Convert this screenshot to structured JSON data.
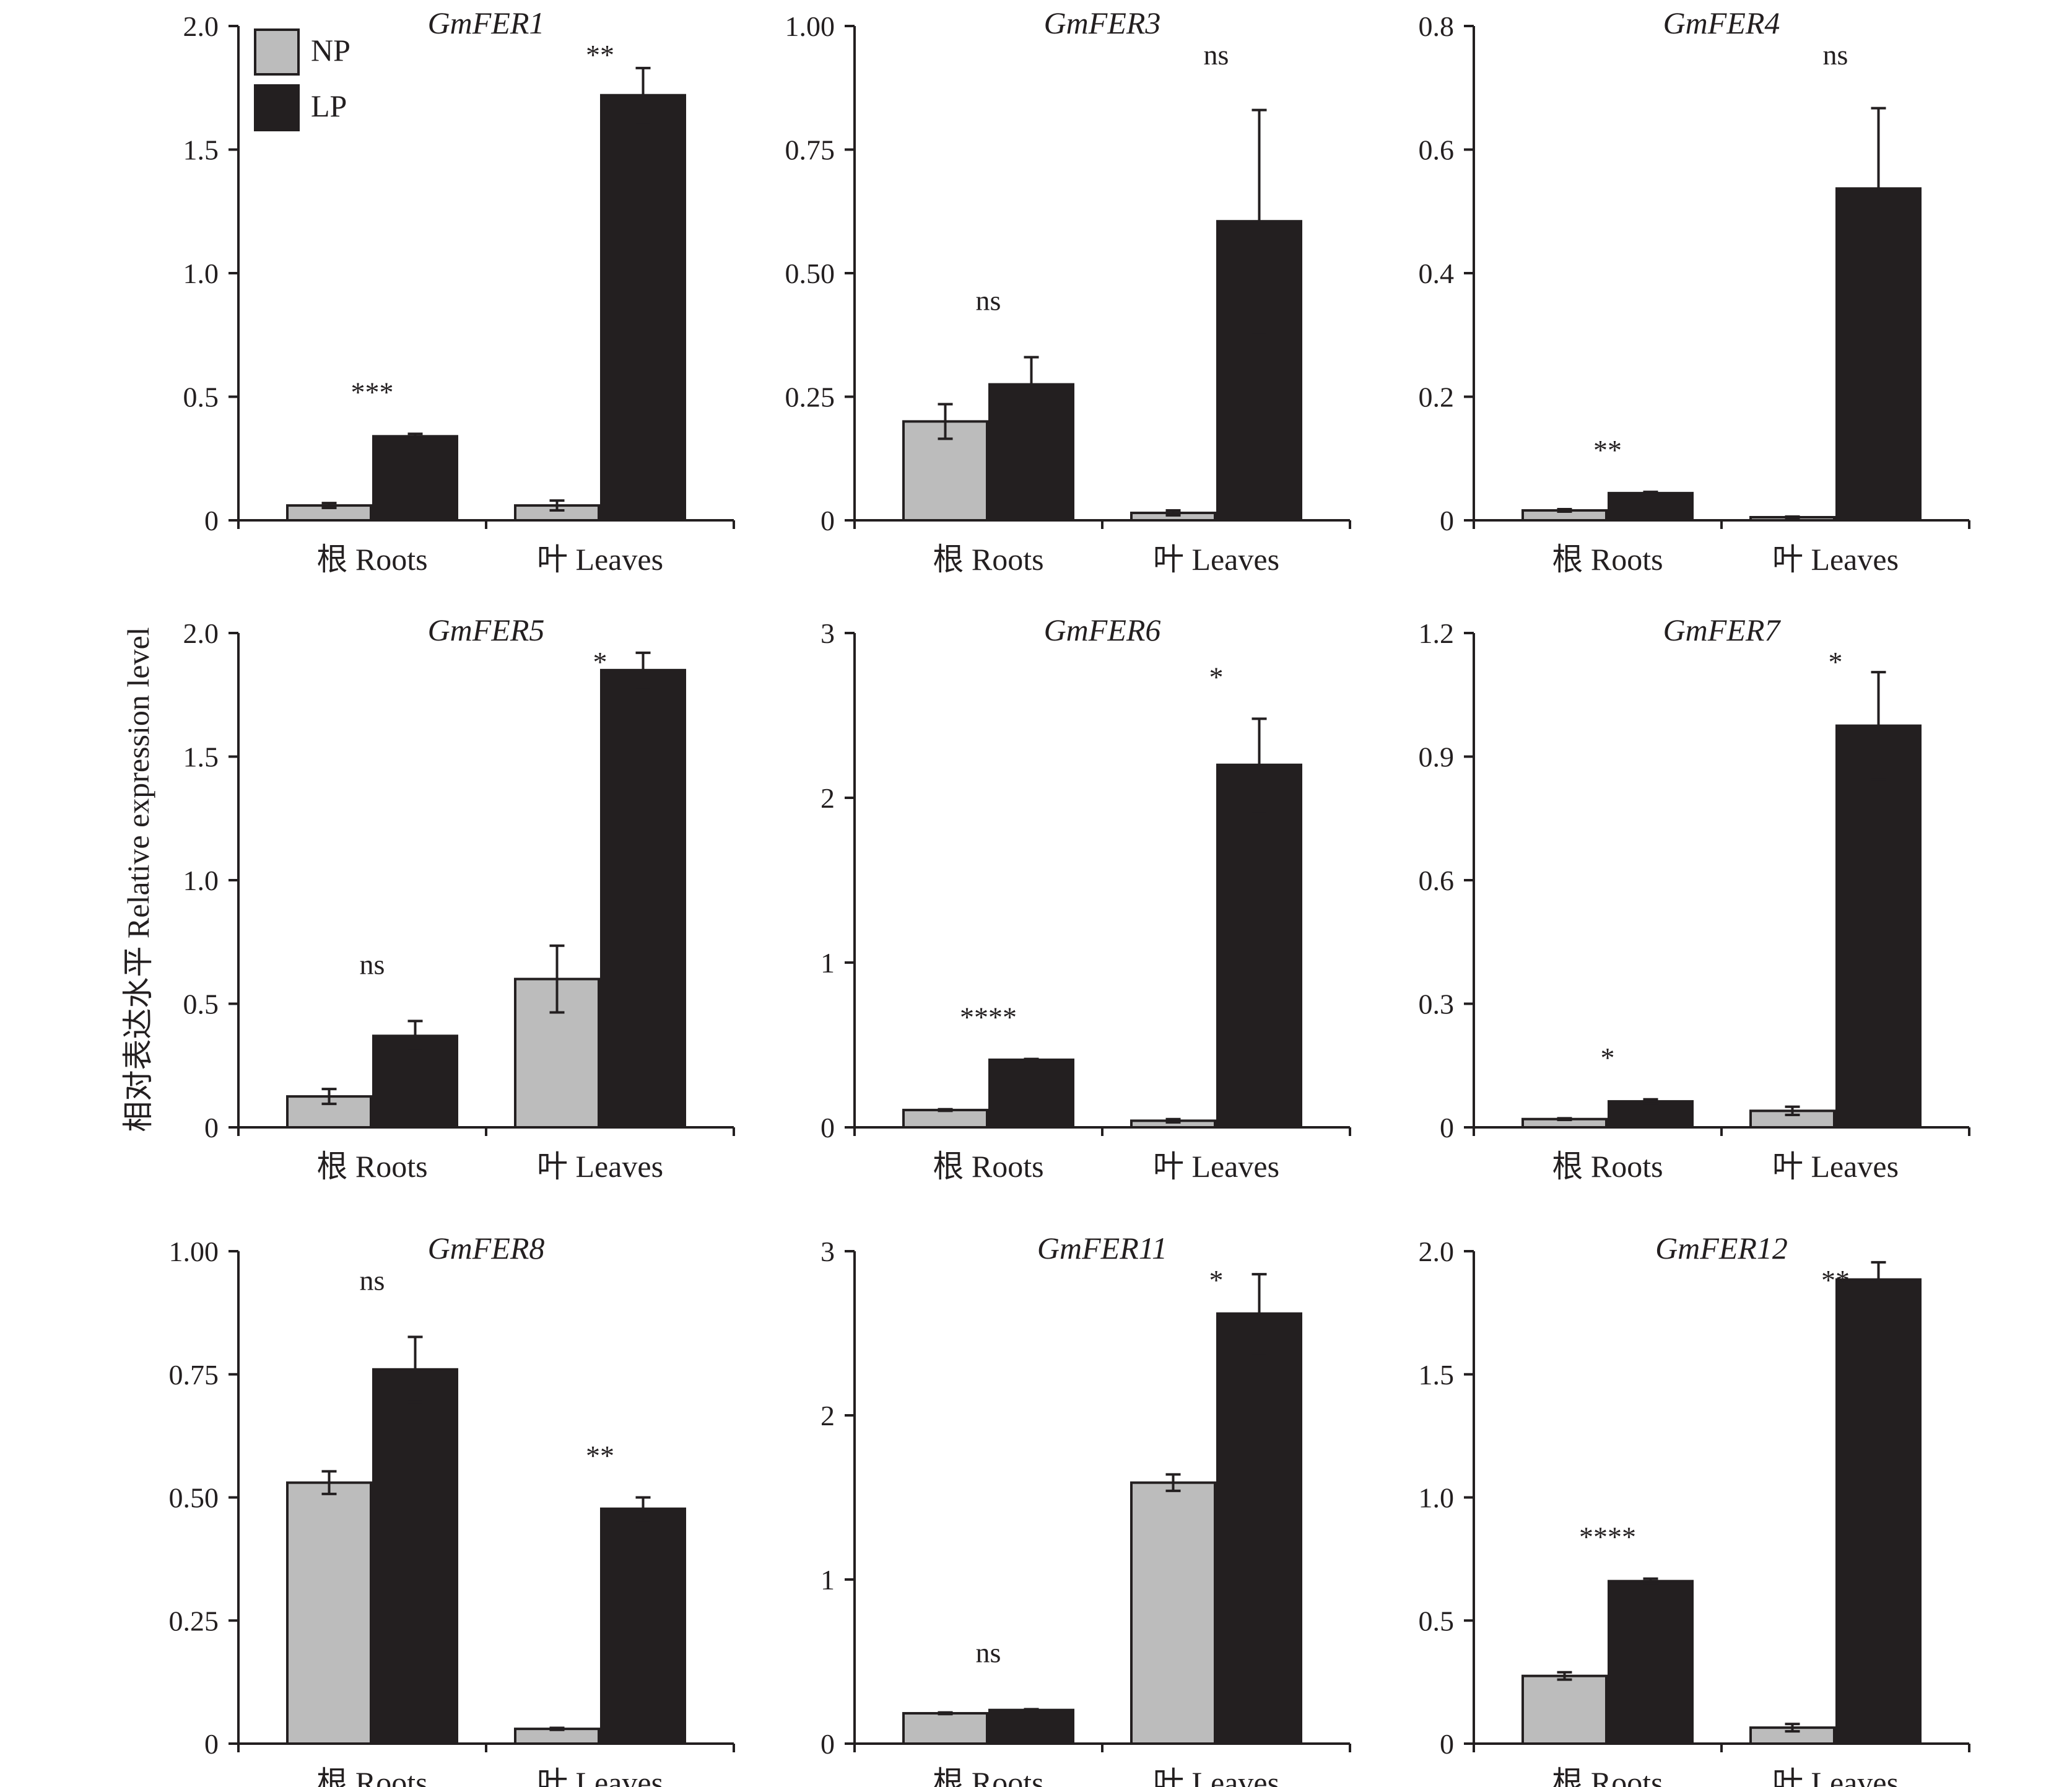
{
  "colors": {
    "np": "#bcbcbc",
    "lp": "#231f20",
    "axis": "#231f20"
  },
  "figure": {
    "ylabel": "相对表达水平 Relative expression level",
    "legend": [
      "NP",
      "LP"
    ]
  },
  "chart_data": [
    {
      "type": "bar",
      "title": "GmFER1",
      "categories": [
        "根 Roots",
        "叶 Leaves"
      ],
      "series": [
        {
          "name": "NP",
          "values": [
            0.06,
            0.06
          ],
          "errors": [
            0.01,
            0.02
          ]
        },
        {
          "name": "LP",
          "values": [
            0.34,
            1.72
          ],
          "errors": [
            0.01,
            0.11
          ]
        }
      ],
      "significance": [
        "***",
        "**"
      ],
      "ylim": [
        0,
        2.0
      ],
      "yticks": [
        "0",
        "0.5",
        "1.0",
        "1.5",
        "2.0"
      ],
      "legend": "top-left"
    },
    {
      "type": "bar",
      "title": "GmFER3",
      "categories": [
        "根 Roots",
        "叶 Leaves"
      ],
      "series": [
        {
          "name": "NP",
          "values": [
            0.2,
            0.015
          ],
          "errors": [
            0.035,
            0.005
          ]
        },
        {
          "name": "LP",
          "values": [
            0.275,
            0.605
          ],
          "errors": [
            0.055,
            0.225
          ]
        }
      ],
      "significance": [
        "ns",
        "ns"
      ],
      "ylim": [
        0,
        1.0
      ],
      "yticks": [
        "0",
        "0.25",
        "0.50",
        "0.75",
        "1.00"
      ]
    },
    {
      "type": "bar",
      "title": "GmFER4",
      "categories": [
        "根 Roots",
        "叶 Leaves"
      ],
      "series": [
        {
          "name": "NP",
          "values": [
            0.016,
            0.005
          ],
          "errors": [
            0.002,
            0.001
          ]
        },
        {
          "name": "LP",
          "values": [
            0.044,
            0.537
          ],
          "errors": [
            0.002,
            0.13
          ]
        }
      ],
      "significance": [
        "**",
        "ns"
      ],
      "ylim": [
        0,
        0.8
      ],
      "yticks": [
        "0",
        "0.2",
        "0.4",
        "0.6",
        "0.8"
      ]
    },
    {
      "type": "bar",
      "title": "GmFER5",
      "categories": [
        "根 Roots",
        "叶 Leaves"
      ],
      "series": [
        {
          "name": "NP",
          "values": [
            0.125,
            0.6
          ],
          "errors": [
            0.03,
            0.135
          ]
        },
        {
          "name": "LP",
          "values": [
            0.37,
            1.85
          ],
          "errors": [
            0.06,
            0.07
          ]
        }
      ],
      "significance": [
        "ns",
        "*"
      ],
      "ylim": [
        0,
        2.0
      ],
      "yticks": [
        "0",
        "0.5",
        "1.0",
        "1.5",
        "2.0"
      ]
    },
    {
      "type": "bar",
      "title": "GmFER6",
      "categories": [
        "根 Roots",
        "叶 Leaves"
      ],
      "series": [
        {
          "name": "NP",
          "values": [
            0.105,
            0.04
          ],
          "errors": [
            0.005,
            0.01
          ]
        },
        {
          "name": "LP",
          "values": [
            0.41,
            2.2
          ],
          "errors": [
            0.005,
            0.28
          ]
        }
      ],
      "significance": [
        "****",
        "*"
      ],
      "ylim": [
        0,
        3
      ],
      "yticks": [
        "0",
        "1",
        "2",
        "3"
      ]
    },
    {
      "type": "bar",
      "title": "GmFER7",
      "categories": [
        "根 Roots",
        "叶 Leaves"
      ],
      "series": [
        {
          "name": "NP",
          "values": [
            0.02,
            0.04
          ],
          "errors": [
            0.002,
            0.01
          ]
        },
        {
          "name": "LP",
          "values": [
            0.063,
            0.975
          ],
          "errors": [
            0.005,
            0.13
          ]
        }
      ],
      "significance": [
        "*",
        "*"
      ],
      "ylim": [
        0,
        1.2
      ],
      "yticks": [
        "0",
        "0.3",
        "0.6",
        "0.9",
        "1.2"
      ]
    },
    {
      "type": "bar",
      "title": "GmFER8",
      "categories": [
        "根 Roots",
        "叶 Leaves"
      ],
      "series": [
        {
          "name": "NP",
          "values": [
            0.53,
            0.03
          ],
          "errors": [
            0.023,
            0.002
          ]
        },
        {
          "name": "LP",
          "values": [
            0.76,
            0.477
          ],
          "errors": [
            0.066,
            0.023
          ]
        }
      ],
      "significance": [
        "ns",
        "**"
      ],
      "ylim": [
        0,
        1.0
      ],
      "yticks": [
        "0",
        "0.25",
        "0.50",
        "0.75",
        "1.00"
      ]
    },
    {
      "type": "bar",
      "title": "GmFER11",
      "categories": [
        "根 Roots",
        "叶 Leaves"
      ],
      "series": [
        {
          "name": "NP",
          "values": [
            0.185,
            1.59
          ],
          "errors": [
            0.005,
            0.05
          ]
        },
        {
          "name": "LP",
          "values": [
            0.205,
            2.62
          ],
          "errors": [
            0.005,
            0.24
          ]
        }
      ],
      "significance": [
        "ns",
        "*"
      ],
      "ylim": [
        0,
        3
      ],
      "yticks": [
        "0",
        "1",
        "2",
        "3"
      ]
    },
    {
      "type": "bar",
      "title": "GmFER12",
      "categories": [
        "根 Roots",
        "叶 Leaves"
      ],
      "series": [
        {
          "name": "NP",
          "values": [
            0.275,
            0.065
          ],
          "errors": [
            0.015,
            0.015
          ]
        },
        {
          "name": "LP",
          "values": [
            0.66,
            1.885
          ],
          "errors": [
            0.01,
            0.07
          ]
        }
      ],
      "significance": [
        "****",
        "**"
      ],
      "ylim": [
        0,
        2.0
      ],
      "yticks": [
        "0",
        "0.5",
        "1.0",
        "1.5",
        "2.0"
      ]
    }
  ]
}
